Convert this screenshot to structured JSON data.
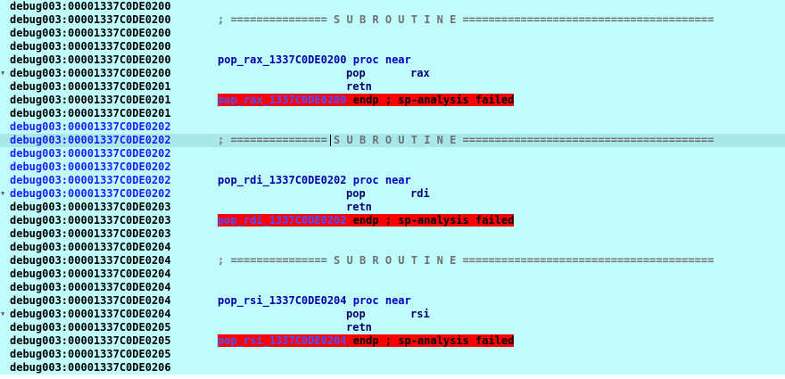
{
  "listing": {
    "segment": "debug003",
    "rows": [
      {
        "addr": "debug003:00001337C0DE0200",
        "kind": "blank"
      },
      {
        "addr": "debug003:00001337C0DE0200",
        "kind": "sep",
        "text": "; =============== S U B R O U T I N E ======================================="
      },
      {
        "addr": "debug003:00001337C0DE0200",
        "kind": "blank"
      },
      {
        "addr": "debug003:00001337C0DE0200",
        "kind": "blank"
      },
      {
        "addr": "debug003:00001337C0DE0200",
        "kind": "proc",
        "label": "pop_rax_1337C0DE0200",
        "kw": "proc near"
      },
      {
        "addr": "debug003:00001337C0DE0200",
        "kind": "ins",
        "mnem": "pop",
        "op": "rax",
        "arrow": true
      },
      {
        "addr": "debug003:00001337C0DE0201",
        "kind": "ins",
        "mnem": "retn",
        "op": ""
      },
      {
        "addr": "debug003:00001337C0DE0201",
        "kind": "endp",
        "label": "pop_rax_1337C0DE0200",
        "tail": " endp ; sp-analysis failed"
      },
      {
        "addr": "debug003:00001337C0DE0201",
        "kind": "blank"
      },
      {
        "addr": "debug003:00001337C0DE0202",
        "kind": "blank",
        "blue": true
      },
      {
        "addr": "debug003:00001337C0DE0202",
        "kind": "sep",
        "blue": true,
        "current": true,
        "text": "; =============== S U B R O U T I N E ======================================="
      },
      {
        "addr": "debug003:00001337C0DE0202",
        "kind": "blank",
        "blue": true
      },
      {
        "addr": "debug003:00001337C0DE0202",
        "kind": "blank",
        "blue": true
      },
      {
        "addr": "debug003:00001337C0DE0202",
        "kind": "proc",
        "blue": true,
        "label": "pop_rdi_1337C0DE0202",
        "kw": "proc near"
      },
      {
        "addr": "debug003:00001337C0DE0202",
        "kind": "ins",
        "blue": true,
        "mnem": "pop",
        "op": "rdi",
        "arrow": true
      },
      {
        "addr": "debug003:00001337C0DE0203",
        "kind": "ins",
        "mnem": "retn",
        "op": ""
      },
      {
        "addr": "debug003:00001337C0DE0203",
        "kind": "endp",
        "label": "pop_rdi_1337C0DE0202",
        "tail": " endp ; sp-analysis failed"
      },
      {
        "addr": "debug003:00001337C0DE0203",
        "kind": "blank"
      },
      {
        "addr": "debug003:00001337C0DE0204",
        "kind": "blank"
      },
      {
        "addr": "debug003:00001337C0DE0204",
        "kind": "sep",
        "text": "; =============== S U B R O U T I N E ======================================="
      },
      {
        "addr": "debug003:00001337C0DE0204",
        "kind": "blank"
      },
      {
        "addr": "debug003:00001337C0DE0204",
        "kind": "blank"
      },
      {
        "addr": "debug003:00001337C0DE0204",
        "kind": "proc",
        "label": "pop_rsi_1337C0DE0204",
        "kw": "proc near"
      },
      {
        "addr": "debug003:00001337C0DE0204",
        "kind": "ins",
        "mnem": "pop",
        "op": "rsi",
        "arrow": true
      },
      {
        "addr": "debug003:00001337C0DE0205",
        "kind": "ins",
        "mnem": "retn",
        "op": ""
      },
      {
        "addr": "debug003:00001337C0DE0205",
        "kind": "endp",
        "label": "pop_rsi_1337C0DE0204",
        "tail": " endp ; sp-analysis failed"
      },
      {
        "addr": "debug003:00001337C0DE0205",
        "kind": "blank"
      },
      {
        "addr": "debug003:00001337C0DE0206",
        "kind": "blank"
      }
    ]
  },
  "colors": {
    "background": "#c0fcfc",
    "current_line": "#a8e8e8",
    "endp_highlight": "#ff0000",
    "address_blue": "#1c1cff"
  },
  "icons": {
    "flow_arrow": "down-right-arrow-icon"
  }
}
